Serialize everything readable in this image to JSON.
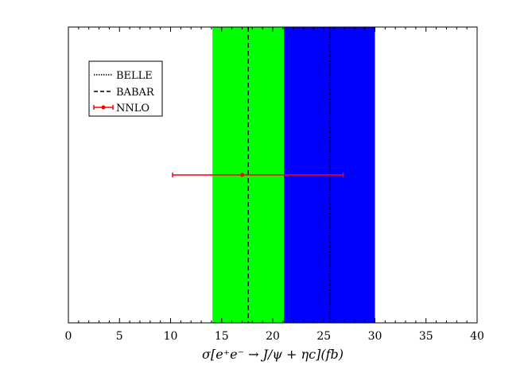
{
  "chart_data": {
    "type": "band-errorbar",
    "xlabel": "σ[e⁺e⁻ → J/ψ + ηc](fb)",
    "xlim": [
      0,
      40
    ],
    "ylim": [
      0,
      1
    ],
    "xticks": [
      "0",
      "5",
      "10",
      "15",
      "20",
      "25",
      "30",
      "35",
      "40"
    ],
    "grid": false,
    "legend_placement": "upper-left",
    "bands": [
      {
        "x_min": 14.1,
        "x_max": 21.1,
        "color": "#00ff00"
      },
      {
        "x_min": 21.1,
        "x_max": 30.0,
        "color": "#0000ff"
      }
    ],
    "vlines": [
      {
        "name": "BELLE",
        "x": 25.6,
        "style": "dotted",
        "color": "#000000"
      },
      {
        "name": "BABAR",
        "x": 17.6,
        "style": "dashed",
        "color": "#000000"
      }
    ],
    "points": [
      {
        "name": "NNLO",
        "x": 17.0,
        "y": 0.5,
        "xerr_low": 10.2,
        "xerr_high": 26.9,
        "color": "#ff0000"
      }
    ],
    "legend": [
      "BELLE",
      "BABAR",
      "NNLO"
    ]
  }
}
